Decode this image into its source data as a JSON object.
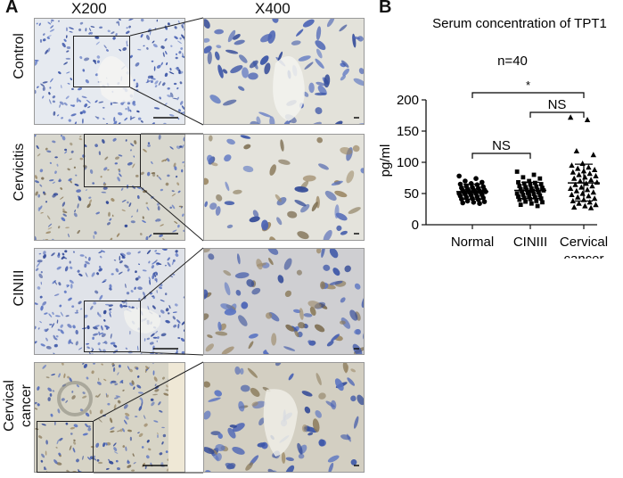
{
  "figure": {
    "panel_a": {
      "letter": "A",
      "col_low": "X200",
      "col_high": "X400",
      "rows": [
        {
          "label_lines": [
            "Control"
          ]
        },
        {
          "label_lines": [
            "Cervicitis"
          ]
        },
        {
          "label_lines": [
            "CINIII"
          ]
        },
        {
          "label_lines": [
            "Cervical",
            "cancer"
          ]
        }
      ]
    },
    "panel_b": {
      "letter": "B",
      "title": "Serum concentration of TPT1",
      "subtitle": "n=40",
      "ylabel": "pg/ml",
      "sig_labels": {
        "normal_vs_cancer": "*",
        "cin_vs_cancer": "NS",
        "normal_vs_cin": "NS"
      }
    }
  },
  "chart_data": {
    "type": "scatter",
    "title": "Serum concentration of TPT1",
    "subtitle": "n=40",
    "ylabel": "pg/ml",
    "ylim": [
      0,
      200
    ],
    "yticks": [
      0,
      50,
      100,
      150,
      200
    ],
    "categories": [
      "Normal",
      "CINIII",
      "Cervical cancer"
    ],
    "series": [
      {
        "category": "Normal",
        "marker": "circle",
        "mean": 53,
        "sd_low": 41,
        "sd_high": 65,
        "values": [
          78,
          74,
          70,
          68,
          66,
          65,
          64,
          62,
          61,
          60,
          59,
          58,
          57,
          56,
          56,
          55,
          54,
          54,
          53,
          53,
          52,
          52,
          51,
          50,
          50,
          49,
          48,
          47,
          46,
          45,
          44,
          43,
          42,
          41,
          40,
          38,
          37,
          36,
          35,
          34
        ]
      },
      {
        "category": "CINIII",
        "marker": "square",
        "mean": 55,
        "sd_low": 42,
        "sd_high": 68,
        "values": [
          85,
          80,
          76,
          74,
          70,
          68,
          67,
          66,
          65,
          64,
          62,
          61,
          60,
          59,
          58,
          57,
          56,
          56,
          55,
          54,
          53,
          52,
          51,
          50,
          49,
          48,
          47,
          46,
          45,
          44,
          43,
          42,
          41,
          40,
          38,
          37,
          36,
          34,
          32,
          30
        ]
      },
      {
        "category": "Cervical cancer",
        "marker": "triangle",
        "mean": 67,
        "sd_low": 38,
        "sd_high": 97,
        "values": [
          172,
          168,
          118,
          112,
          98,
          95,
          92,
          90,
          88,
          86,
          84,
          82,
          80,
          78,
          76,
          74,
          72,
          70,
          68,
          66,
          64,
          62,
          60,
          58,
          56,
          54,
          52,
          50,
          48,
          46,
          44,
          42,
          40,
          38,
          36,
          34,
          32,
          30,
          28,
          27
        ]
      }
    ],
    "comparisons": [
      {
        "from": "Normal",
        "to": "Cervical cancer",
        "label": "*"
      },
      {
        "from": "CINIII",
        "to": "Cervical cancer",
        "label": "NS"
      },
      {
        "from": "Normal",
        "to": "CINIII",
        "label": "NS"
      }
    ],
    "grid": false,
    "legend": "none"
  }
}
